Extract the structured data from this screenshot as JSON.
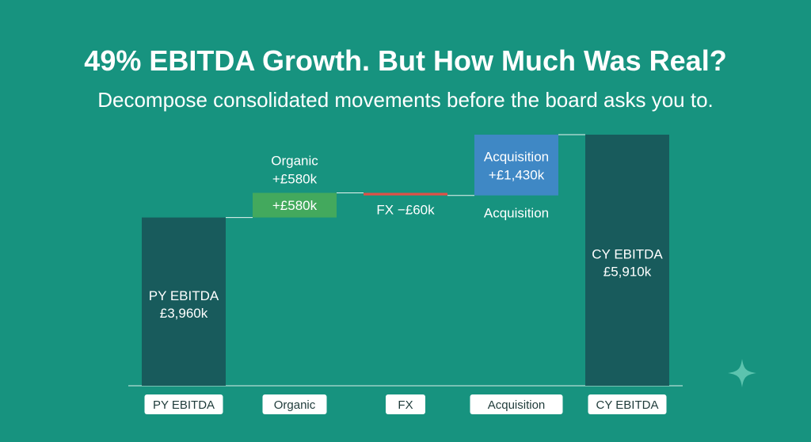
{
  "header": {
    "title": "49% EBITDA Growth. But How Much Was Real?",
    "subtitle": "Decompose consolidated movements before the board asks you to."
  },
  "chart_data": {
    "type": "bar",
    "subtype": "waterfall",
    "title": "",
    "xlabel": "",
    "ylabel": "",
    "ylim": [
      0,
      5910
    ],
    "grid": false,
    "categories": [
      "PY EBITDA",
      "Organic",
      "FX",
      "Acquisition",
      "CY EBITDA"
    ],
    "bars": [
      {
        "category": "PY EBITDA",
        "kind": "total",
        "value": 3960,
        "color": "#185b5c",
        "labels": [
          "PY EBITDA",
          "£3,960k"
        ]
      },
      {
        "category": "Organic",
        "kind": "delta",
        "value": 580,
        "color": "#43a95d",
        "inner_label": "+£580k",
        "above_labels": [
          "Organic",
          "+£580k"
        ]
      },
      {
        "category": "FX",
        "kind": "delta",
        "value": -60,
        "color": "#e05147",
        "below_label": "FX −£60k"
      },
      {
        "category": "Acquisition",
        "kind": "delta",
        "value": 1430,
        "color": "#3f88c5",
        "labels": [
          "Acquisition",
          "+£1,430k"
        ],
        "below_label": "Acquisition"
      },
      {
        "category": "CY EBITDA",
        "kind": "total",
        "value": 5910,
        "color": "#185b5c",
        "labels": [
          "CY EBITDA",
          "£5,910k"
        ]
      }
    ],
    "colors": {
      "background": "#17937f",
      "total": "#185b5c",
      "increase": "#43a95d",
      "decrease": "#e05147",
      "acquisition": "#3f88c5",
      "connector": "#e8f4f1",
      "tick_bg": "#ffffff",
      "tick_text": "#1f3b3a",
      "sparkle": "#5cc3ae"
    }
  },
  "decor": {
    "icon": "sparkle-icon"
  }
}
